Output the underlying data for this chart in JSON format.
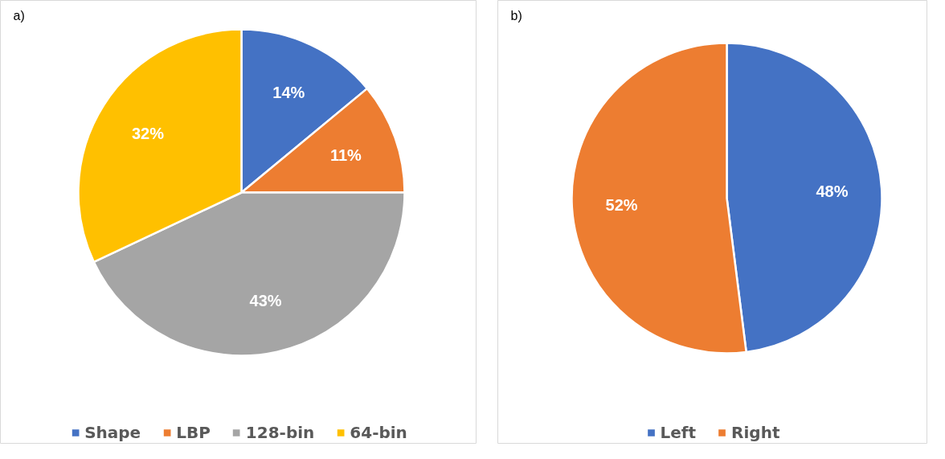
{
  "chart_data": [
    {
      "type": "pie",
      "title": "a)",
      "categories": [
        "Shape",
        "LBP",
        "128-bin",
        "64-bin"
      ],
      "values": [
        14,
        11,
        43,
        32
      ],
      "value_labels": [
        "14%",
        "11%",
        "43%",
        "32%"
      ],
      "colors": [
        "#4472c4",
        "#ed7d31",
        "#a5a5a5",
        "#ffc000"
      ],
      "data_labels": true,
      "legend": "bottom"
    },
    {
      "type": "pie",
      "title": "b)",
      "categories": [
        "Left",
        "Right"
      ],
      "values": [
        48,
        52
      ],
      "value_labels": [
        "48%",
        "52%"
      ],
      "colors": [
        "#4472c4",
        "#ed7d31"
      ],
      "data_labels": true,
      "legend": "bottom"
    }
  ]
}
